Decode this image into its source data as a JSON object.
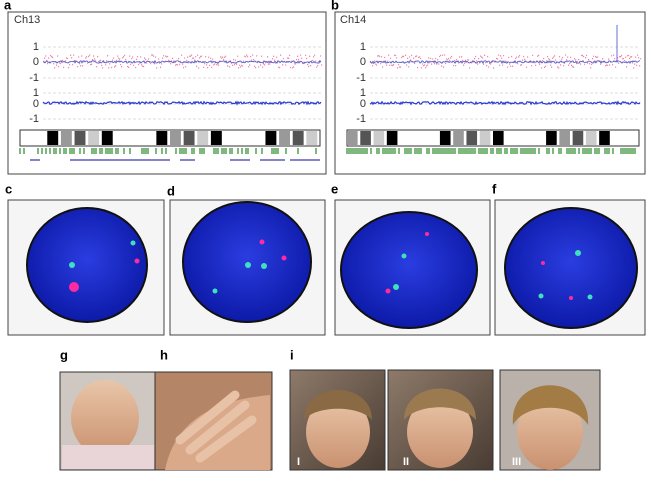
{
  "panels": {
    "a": {
      "label": "a",
      "chromosome": "Ch13",
      "ticks": [
        1,
        0,
        -1,
        1,
        0,
        -1
      ]
    },
    "b": {
      "label": "b",
      "chromosome": "Ch14",
      "ticks": [
        1,
        0,
        -1,
        1,
        0,
        -1
      ]
    },
    "c": {
      "label": "c"
    },
    "d": {
      "label": "d"
    },
    "e": {
      "label": "e"
    },
    "f": {
      "label": "f"
    },
    "g": {
      "label": "g"
    },
    "h": {
      "label": "h"
    },
    "i": {
      "label": "i",
      "photos": [
        "I",
        "II",
        "III"
      ]
    }
  }
}
